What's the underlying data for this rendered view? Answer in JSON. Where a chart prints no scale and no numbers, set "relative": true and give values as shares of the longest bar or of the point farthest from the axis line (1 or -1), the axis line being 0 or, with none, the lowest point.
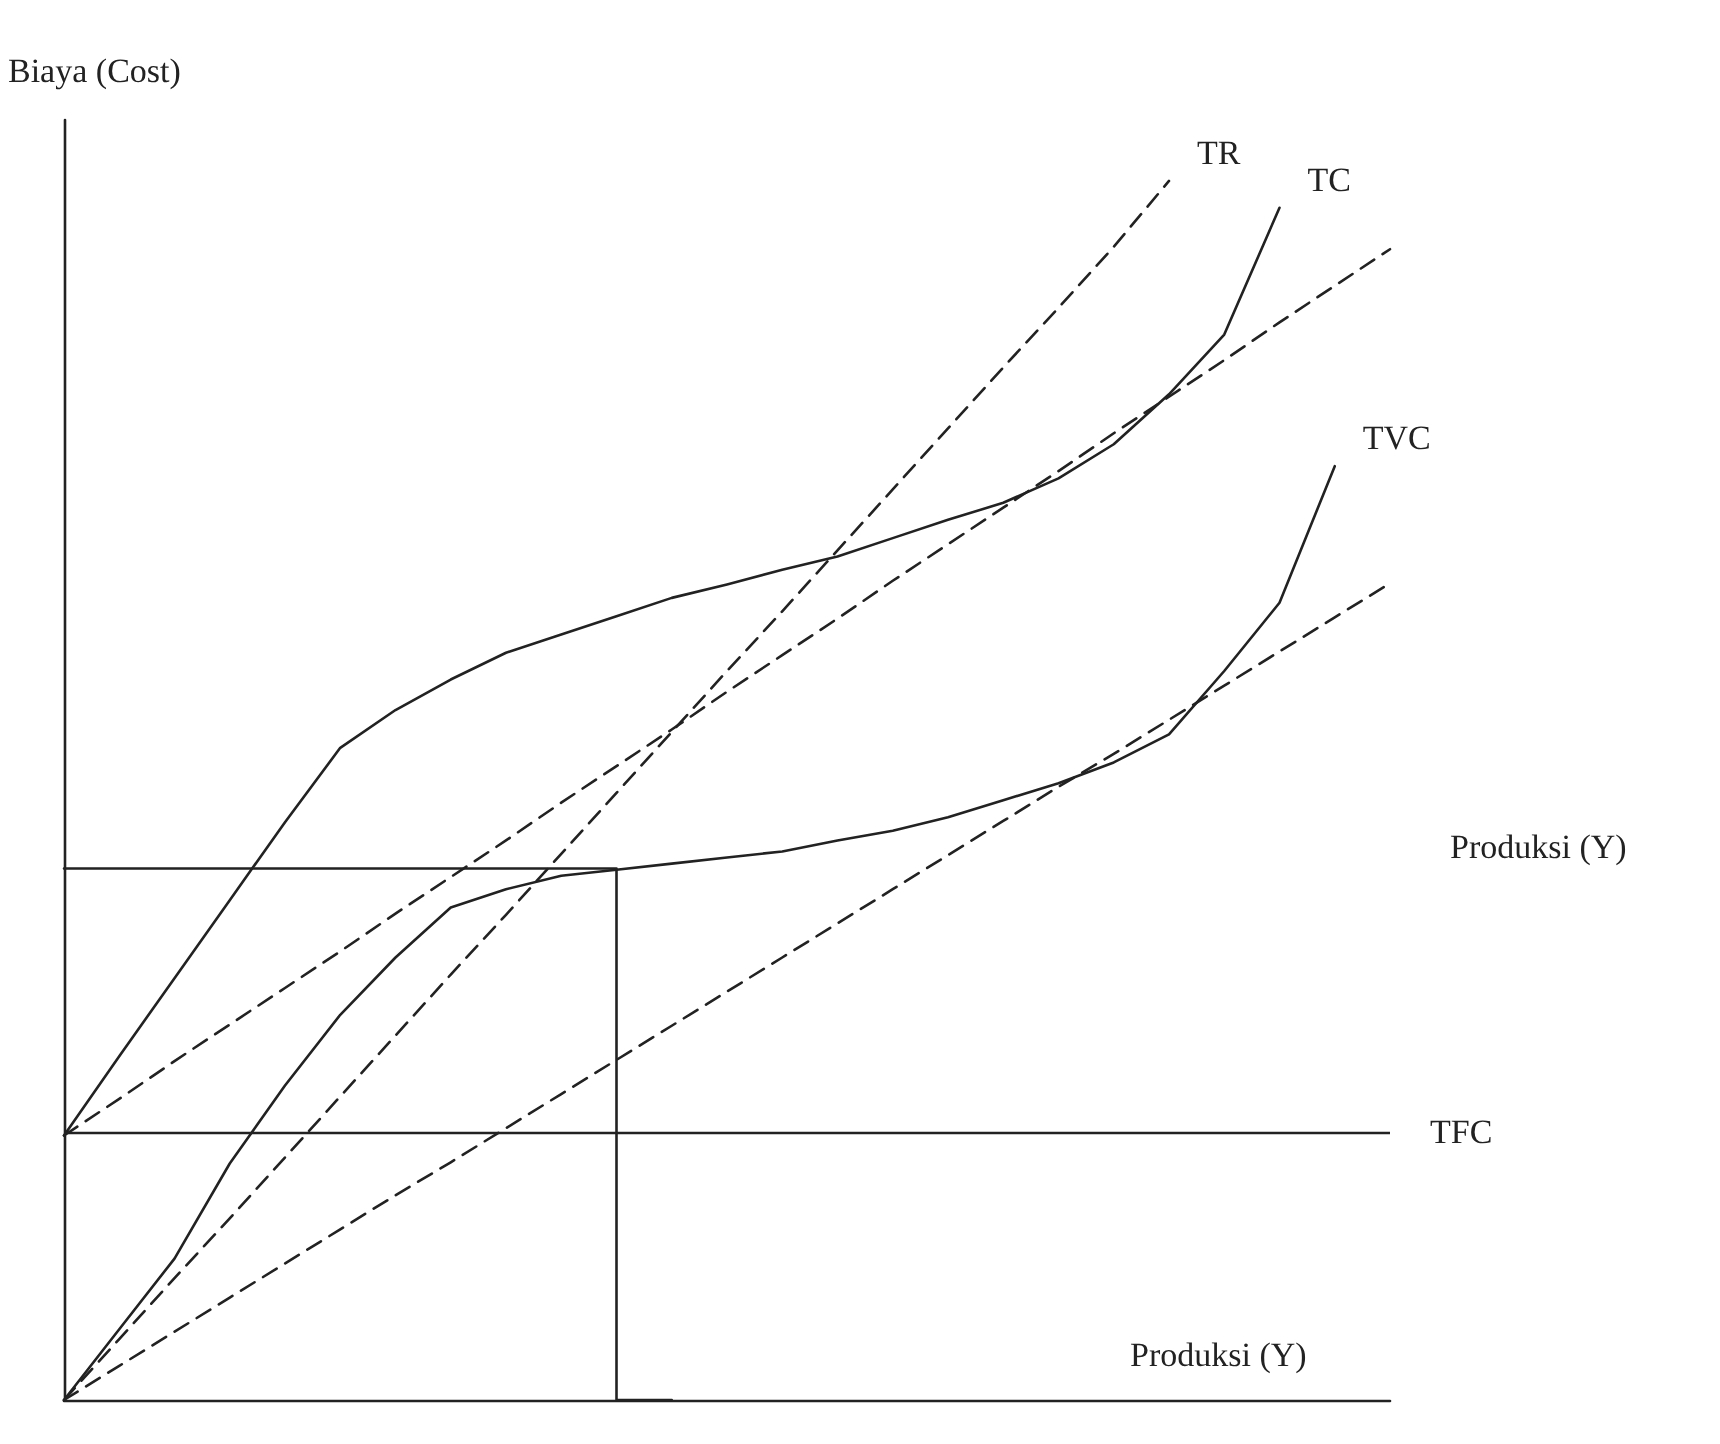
{
  "chart_data": {
    "type": "line",
    "relative": true,
    "ylabel": "Biaya (Cost)",
    "xlabel": "Produksi (Y)",
    "grid": false,
    "legend": false,
    "marker": "none",
    "line_style": "solid",
    "categories": [
      null,
      null,
      null,
      null,
      null,
      null,
      null,
      null,
      null,
      null,
      null,
      null,
      null,
      null,
      null,
      null,
      null,
      null,
      null,
      null,
      null,
      null,
      null,
      null,
      null
    ],
    "series": [
      {
        "name": "TR",
        "color": "#222222",
        "line_style": "dashed",
        "values": [
          0,
          0.05,
          0.1,
          0.149,
          0.199,
          0.249,
          0.299,
          0.349,
          0.398,
          0.448,
          0.498,
          0.548,
          0.598,
          0.647,
          0.697,
          0.747,
          0.797,
          0.847,
          0.896,
          0.946,
          1.0,
          null,
          null,
          null,
          null
        ]
      },
      {
        "name": "TC",
        "color": "#222222",
        "values": [
          0.217,
          0.282,
          0.346,
          0.41,
          0.474,
          0.535,
          0.566,
          0.591,
          0.613,
          0.628,
          0.643,
          0.658,
          0.669,
          0.681,
          0.692,
          0.707,
          0.722,
          0.736,
          0.756,
          0.784,
          0.825,
          0.874,
          0.978,
          null,
          null
        ]
      },
      {
        "color": "#222222",
        "line_style": "dashed",
        "values": [
          0.217,
          0.247,
          0.278,
          0.308,
          0.338,
          0.368,
          0.399,
          0.429,
          0.459,
          0.49,
          0.52,
          0.55,
          0.581,
          0.611,
          0.641,
          0.672,
          0.702,
          0.732,
          0.762,
          0.793,
          0.823,
          0.853,
          0.884,
          0.914,
          0.944
        ]
      },
      {
        "name": "TVC",
        "color": "#222222",
        "values": [
          0,
          0.058,
          0.116,
          0.194,
          0.258,
          0.316,
          0.363,
          0.404,
          0.419,
          0.43,
          0.435,
          0.44,
          0.445,
          0.45,
          0.459,
          0.467,
          0.478,
          0.492,
          0.506,
          0.523,
          0.546,
          0.598,
          0.654,
          0.766,
          null
        ]
      },
      {
        "color": "#222222",
        "line_style": "dashed",
        "values": [
          0,
          0.028,
          0.056,
          0.084,
          0.112,
          0.14,
          0.168,
          0.195,
          0.223,
          0.251,
          0.279,
          0.307,
          0.335,
          0.363,
          0.391,
          0.419,
          0.447,
          0.475,
          0.503,
          0.53,
          0.558,
          0.586,
          0.614,
          0.642,
          0.67
        ]
      },
      {
        "type": "step",
        "color": "#222222",
        "values": [
          0.436,
          0.436,
          0.436,
          0.436,
          0.436,
          0.436,
          0.436,
          0.436,
          0.436,
          0.436,
          0.436,
          0,
          null,
          null,
          null,
          null,
          null,
          null,
          null,
          null,
          null,
          null,
          null,
          null,
          null
        ]
      }
    ],
    "ref_lines": [
      {
        "axis": "y",
        "value": 0.217,
        "label": "TFC",
        "color": "#222222"
      }
    ],
    "annotations": [
      "Produksi (Y)"
    ]
  }
}
